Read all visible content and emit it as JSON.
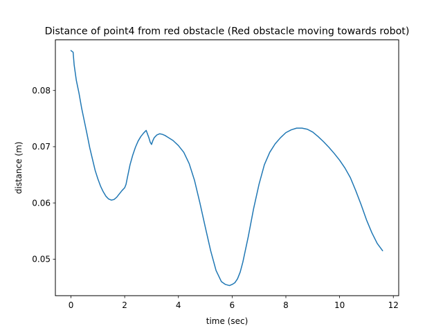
{
  "chart_data": {
    "type": "line",
    "title": "Distance of point4 from red obstacle (Red obstacle moving towards robot)",
    "xlabel": "time (sec)",
    "ylabel": "distance (m)",
    "xlim": [
      -0.58,
      12.2
    ],
    "ylim": [
      0.0435,
      0.089
    ],
    "xticks": [
      0,
      2,
      4,
      6,
      8,
      10,
      12
    ],
    "xtick_labels": [
      "0",
      "2",
      "4",
      "6",
      "8",
      "10",
      "12"
    ],
    "yticks": [
      0.05,
      0.06,
      0.07,
      0.08
    ],
    "ytick_labels": [
      "0.05",
      "0.06",
      "0.07",
      "0.08"
    ],
    "grid": false,
    "legend": "none",
    "series": [
      {
        "color": "#1f77b4",
        "x": [
          0.0,
          0.08,
          0.12,
          0.2,
          0.3,
          0.4,
          0.5,
          0.6,
          0.7,
          0.8,
          0.9,
          1.0,
          1.1,
          1.2,
          1.3,
          1.4,
          1.5,
          1.6,
          1.7,
          1.8,
          1.9,
          2.0,
          2.05,
          2.1,
          2.2,
          2.3,
          2.4,
          2.5,
          2.6,
          2.7,
          2.8,
          2.9,
          2.95,
          3.0,
          3.05,
          3.1,
          3.2,
          3.3,
          3.4,
          3.5,
          3.6,
          3.8,
          4.0,
          4.2,
          4.4,
          4.6,
          4.8,
          5.0,
          5.2,
          5.4,
          5.6,
          5.75,
          5.9,
          6.0,
          6.1,
          6.2,
          6.3,
          6.4,
          6.6,
          6.8,
          7.0,
          7.2,
          7.4,
          7.6,
          7.8,
          8.0,
          8.2,
          8.4,
          8.6,
          8.8,
          9.0,
          9.2,
          9.4,
          9.6,
          9.8,
          10.0,
          10.2,
          10.4,
          10.6,
          10.8,
          11.0,
          11.2,
          11.4,
          11.6
        ],
        "y": [
          0.0871,
          0.0868,
          0.0845,
          0.0818,
          0.0795,
          0.0768,
          0.0745,
          0.0722,
          0.0698,
          0.0678,
          0.0658,
          0.0643,
          0.063,
          0.062,
          0.0612,
          0.0607,
          0.0605,
          0.0606,
          0.061,
          0.0616,
          0.0622,
          0.0627,
          0.0633,
          0.0645,
          0.0668,
          0.0685,
          0.0699,
          0.071,
          0.0718,
          0.0724,
          0.0729,
          0.0716,
          0.0708,
          0.0704,
          0.0711,
          0.0716,
          0.0721,
          0.0723,
          0.0722,
          0.072,
          0.0717,
          0.0711,
          0.0702,
          0.069,
          0.067,
          0.064,
          0.06,
          0.0557,
          0.0515,
          0.048,
          0.046,
          0.0455,
          0.0453,
          0.0455,
          0.0458,
          0.0465,
          0.0477,
          0.0495,
          0.054,
          0.059,
          0.0633,
          0.0668,
          0.069,
          0.0705,
          0.0716,
          0.0725,
          0.073,
          0.0733,
          0.0733,
          0.0731,
          0.0726,
          0.0718,
          0.0709,
          0.0699,
          0.0688,
          0.0676,
          0.0662,
          0.0645,
          0.0622,
          0.0597,
          0.057,
          0.0547,
          0.0528,
          0.0515
        ]
      }
    ]
  }
}
